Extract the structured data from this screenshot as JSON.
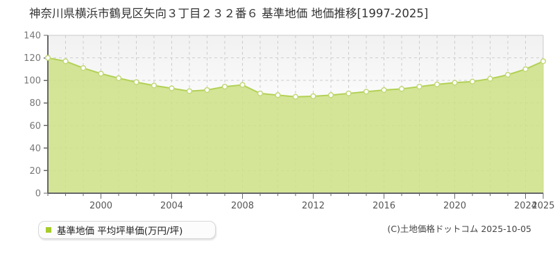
{
  "title": "神奈川県横浜市鶴見区矢向３丁目２３２番６ 基準地価 地価推移[1997-2025]",
  "legend": {
    "label": "基準地価 平均坪単価(万円/坪)",
    "marker_color": "#a6cc2a"
  },
  "footer": {
    "copyright": "(C)土地価格ドットコム 2025-10-05"
  },
  "chart_data": {
    "type": "area",
    "title": "神奈川県横浜市鶴見区矢向３丁目２３２番６ 基準地価 地価推移[1997-2025]",
    "series_name": "基準地価 平均坪単価(万円/坪)",
    "ylabel": "平均坪単価(万円/坪)",
    "xlabel": "",
    "x": [
      1997,
      1998,
      1999,
      2000,
      2001,
      2002,
      2003,
      2004,
      2005,
      2006,
      2007,
      2008,
      2009,
      2010,
      2011,
      2012,
      2013,
      2014,
      2015,
      2016,
      2017,
      2018,
      2019,
      2020,
      2021,
      2022,
      2023,
      2024,
      2025
    ],
    "values": [
      120,
      117,
      111,
      106,
      102,
      98.5,
      95.5,
      93,
      90.5,
      91.5,
      94.5,
      96,
      88.5,
      87,
      85.5,
      86,
      87,
      88.5,
      90,
      91.5,
      92.5,
      94.5,
      96.5,
      98,
      99,
      101.5,
      105,
      110,
      117
    ],
    "ylim": [
      0,
      140
    ],
    "yticks": [
      0,
      20,
      40,
      60,
      80,
      100,
      120,
      140
    ],
    "xtick_labels": [
      2000,
      2004,
      2008,
      2012,
      2016,
      2020,
      2024,
      2025
    ],
    "grid": true,
    "legend_position": "bottom-left",
    "colors": {
      "fill": "#cde085",
      "line": "#b2d155",
      "marker_fill": "#ffffff",
      "marker_border": "#c2d878",
      "grid": "#cccccc",
      "border": "#c9c9c9",
      "axis": "#666666",
      "ytick_text": "#777777",
      "xtick_text": "#555555",
      "plot_bg_top": "#f1f1f1",
      "plot_bg_bottom": "#ffffff"
    }
  }
}
